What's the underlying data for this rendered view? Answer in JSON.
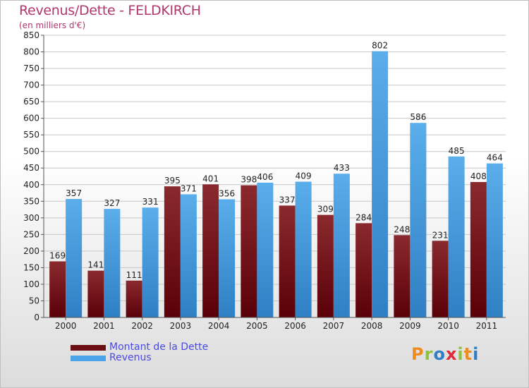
{
  "header": {
    "title": "Revenus/Dette - FELDKIRCH",
    "subtitle": "(en milliers d'€)"
  },
  "legend": {
    "items": [
      {
        "label": "Montant de la Dette",
        "color": "#6b0e14"
      },
      {
        "label": "Revenus",
        "color": "#4aa3e6"
      }
    ]
  },
  "logo": {
    "text": "Proxiti"
  },
  "chart_data": {
    "type": "bar",
    "categories": [
      "2000",
      "2001",
      "2002",
      "2003",
      "2004",
      "2005",
      "2006",
      "2007",
      "2008",
      "2009",
      "2010",
      "2011"
    ],
    "series": [
      {
        "name": "Montant de la Dette",
        "color": "#6b0e14",
        "values": [
          169,
          141,
          111,
          395,
          401,
          398,
          337,
          309,
          284,
          248,
          231,
          408
        ]
      },
      {
        "name": "Revenus",
        "color": "#4aa3e6",
        "values": [
          357,
          327,
          331,
          371,
          356,
          406,
          409,
          433,
          802,
          586,
          485,
          464
        ]
      }
    ],
    "title": "Revenus/Dette - FELDKIRCH",
    "ylabel": "(en milliers d'€)",
    "xlabel": "",
    "ylim": [
      0,
      850
    ],
    "yticks": [
      0,
      50,
      100,
      150,
      200,
      250,
      300,
      350,
      400,
      450,
      500,
      550,
      600,
      650,
      700,
      750,
      800,
      850
    ],
    "grid": true,
    "legend_position": "bottom-left"
  }
}
